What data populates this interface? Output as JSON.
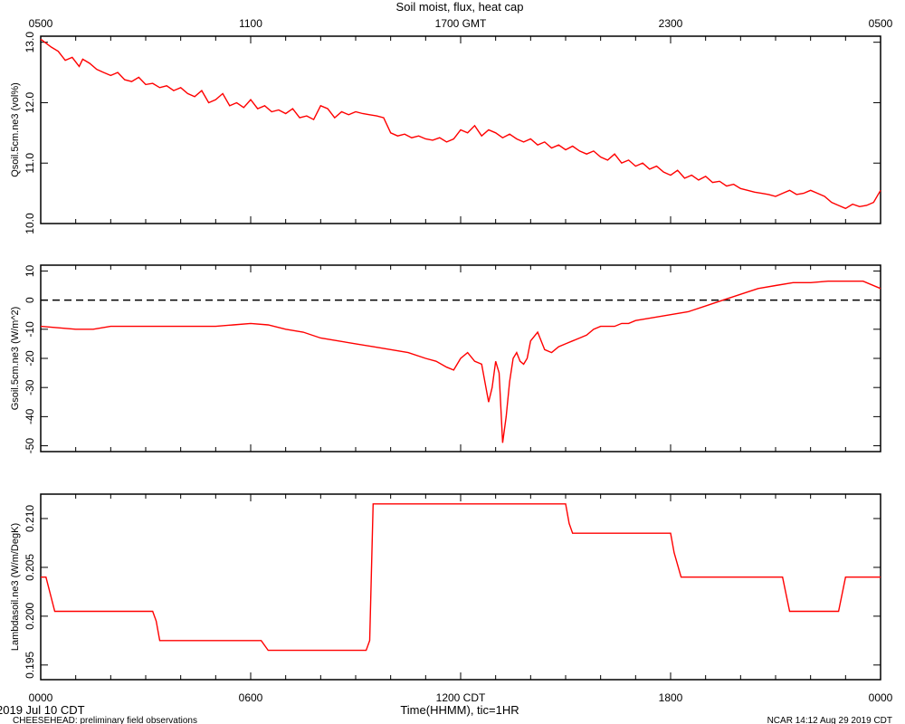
{
  "title": "Soil moist, flux, heat cap",
  "footer": {
    "left_date": "2019 Jul 10 CDT",
    "project": "CHEESEHEAD: preliminary field observations",
    "stamp": "NCAR 14:12 Aug 29 2019 CDT"
  },
  "top_axis": {
    "ticks": [
      {
        "hour": 0,
        "label": "0500"
      },
      {
        "hour": 6,
        "label": "1100"
      },
      {
        "hour": 12,
        "label": "1700 GMT"
      },
      {
        "hour": 18,
        "label": "2300"
      },
      {
        "hour": 24,
        "label": "0500"
      }
    ]
  },
  "bottom_axis": {
    "xlabel": "Time(HHMM), tic=1HR",
    "ticks": [
      {
        "hour": 0,
        "label": "0000"
      },
      {
        "hour": 6,
        "label": "0600"
      },
      {
        "hour": 12,
        "label": "1200 CDT"
      },
      {
        "hour": 18,
        "label": "1800"
      },
      {
        "hour": 24,
        "label": "0000"
      }
    ]
  },
  "colors": {
    "series": "#ff0000",
    "axes": "#000000",
    "zero_line": "#000000"
  },
  "chart_data": [
    {
      "type": "line",
      "ylabel": "Qsoil.5cm.ne3 (vol%)",
      "xlim": [
        0,
        24
      ],
      "ylim": [
        10.0,
        13.1
      ],
      "yticks": [
        {
          "v": 10.0,
          "label": "10.0"
        },
        {
          "v": 11.0,
          "label": "11.0"
        },
        {
          "v": 12.0,
          "label": "12.0"
        },
        {
          "v": 13.0,
          "label": "13.0"
        }
      ],
      "zero_line": false,
      "series": [
        {
          "x": [
            0,
            0.3,
            0.5,
            0.7,
            0.9,
            1.1,
            1.2,
            1.4,
            1.6,
            1.8,
            2.0,
            2.2,
            2.4,
            2.6,
            2.8,
            3.0,
            3.2,
            3.4,
            3.6,
            3.8,
            4.0,
            4.2,
            4.4,
            4.6,
            4.8,
            5.0,
            5.2,
            5.4,
            5.6,
            5.8,
            6.0,
            6.2,
            6.4,
            6.6,
            6.8,
            7.0,
            7.2,
            7.4,
            7.6,
            7.8,
            8.0,
            8.2,
            8.4,
            8.6,
            8.8,
            9.0,
            9.2,
            9.4,
            9.6,
            9.8,
            10.0,
            10.2,
            10.4,
            10.6,
            10.8,
            11.0,
            11.2,
            11.4,
            11.6,
            11.8,
            12.0,
            12.2,
            12.4,
            12.6,
            12.8,
            13.0,
            13.2,
            13.4,
            13.6,
            13.8,
            14.0,
            14.2,
            14.4,
            14.6,
            14.8,
            15.0,
            15.2,
            15.4,
            15.6,
            15.8,
            16.0,
            16.2,
            16.4,
            16.6,
            16.8,
            17.0,
            17.2,
            17.4,
            17.6,
            17.8,
            18.0,
            18.2,
            18.4,
            18.6,
            18.8,
            19.0,
            19.2,
            19.4,
            19.6,
            19.8,
            20.0,
            20.2,
            20.4,
            20.6,
            20.8,
            21.0,
            21.2,
            21.4,
            21.6,
            21.8,
            22.0,
            22.2,
            22.4,
            22.6,
            22.8,
            23.0,
            23.2,
            23.4,
            23.6,
            23.8,
            24.0
          ],
          "y": [
            13.05,
            12.92,
            12.85,
            12.7,
            12.75,
            12.6,
            12.72,
            12.65,
            12.55,
            12.5,
            12.45,
            12.5,
            12.38,
            12.35,
            12.42,
            12.3,
            12.32,
            12.25,
            12.28,
            12.2,
            12.25,
            12.15,
            12.1,
            12.2,
            12.0,
            12.05,
            12.15,
            11.95,
            12.0,
            11.92,
            12.05,
            11.9,
            11.95,
            11.85,
            11.88,
            11.82,
            11.9,
            11.75,
            11.78,
            11.72,
            11.95,
            11.9,
            11.75,
            11.85,
            11.8,
            11.85,
            11.82,
            11.8,
            11.78,
            11.75,
            11.5,
            11.45,
            11.48,
            11.42,
            11.45,
            11.4,
            11.38,
            11.42,
            11.35,
            11.4,
            11.55,
            11.5,
            11.62,
            11.45,
            11.55,
            11.5,
            11.42,
            11.48,
            11.4,
            11.35,
            11.4,
            11.3,
            11.35,
            11.25,
            11.3,
            11.22,
            11.28,
            11.2,
            11.15,
            11.2,
            11.1,
            11.05,
            11.15,
            11.0,
            11.05,
            10.95,
            11.0,
            10.9,
            10.95,
            10.85,
            10.8,
            10.88,
            10.75,
            10.8,
            10.72,
            10.78,
            10.68,
            10.7,
            10.62,
            10.65,
            10.58,
            10.55,
            10.52,
            10.5,
            10.48,
            10.45,
            10.5,
            10.55,
            10.48,
            10.5,
            10.55,
            10.5,
            10.45,
            10.35,
            10.3,
            10.25,
            10.32,
            10.28,
            10.3,
            10.35,
            10.55
          ]
        }
      ]
    },
    {
      "type": "line",
      "ylabel": "Gsoil.5cm.ne3 (W/m^2)",
      "xlim": [
        0,
        24
      ],
      "ylim": [
        -52,
        12
      ],
      "yticks": [
        {
          "v": -50,
          "label": "-50"
        },
        {
          "v": -40,
          "label": "-40"
        },
        {
          "v": -30,
          "label": "-30"
        },
        {
          "v": -20,
          "label": "-20"
        },
        {
          "v": -10,
          "label": "-10"
        },
        {
          "v": 0,
          "label": "0"
        },
        {
          "v": 10,
          "label": "10"
        }
      ],
      "zero_line": true,
      "series": [
        {
          "x": [
            0,
            1,
            1.5,
            2,
            3,
            4,
            5,
            5.5,
            6,
            6.5,
            7,
            7.5,
            8,
            8.5,
            9,
            9.5,
            10,
            10.5,
            11,
            11.3,
            11.6,
            11.8,
            12.0,
            12.2,
            12.4,
            12.6,
            12.8,
            12.9,
            13.0,
            13.1,
            13.2,
            13.3,
            13.4,
            13.5,
            13.6,
            13.7,
            13.8,
            13.9,
            14.0,
            14.2,
            14.4,
            14.6,
            14.8,
            15.0,
            15.2,
            15.4,
            15.6,
            15.8,
            16.0,
            16.2,
            16.4,
            16.6,
            16.8,
            17.0,
            17.5,
            18.0,
            18.5,
            19.0,
            19.5,
            20.0,
            20.5,
            21.0,
            21.5,
            22.0,
            22.5,
            23.0,
            23.5,
            24.0
          ],
          "y": [
            -9,
            -10,
            -10,
            -9,
            -9,
            -9,
            -9,
            -8.5,
            -8,
            -8.5,
            -10,
            -11,
            -13,
            -14,
            -15,
            -16,
            -17,
            -18,
            -20,
            -21,
            -23,
            -24,
            -20,
            -18,
            -21,
            -22,
            -35,
            -30,
            -21,
            -25,
            -49,
            -40,
            -28,
            -20,
            -18,
            -21,
            -22,
            -20,
            -14,
            -11,
            -17,
            -18,
            -16,
            -15,
            -14,
            -13,
            -12,
            -10,
            -9,
            -9,
            -9,
            -8,
            -8,
            -7,
            -6,
            -5,
            -4,
            -2,
            0,
            2,
            4,
            5,
            6,
            6,
            6.5,
            6.5,
            6.5,
            4
          ]
        }
      ]
    },
    {
      "type": "line",
      "ylabel": "Lambdasoil.ne3 (W/m/DegK)",
      "xlim": [
        0,
        24
      ],
      "ylim": [
        0.1935,
        0.2125
      ],
      "yticks": [
        {
          "v": 0.195,
          "label": "0.195"
        },
        {
          "v": 0.2,
          "label": "0.200"
        },
        {
          "v": 0.205,
          "label": "0.205"
        },
        {
          "v": 0.21,
          "label": "0.210"
        }
      ],
      "zero_line": false,
      "series": [
        {
          "x": [
            0,
            0.15,
            0.4,
            3.2,
            3.3,
            3.4,
            6.3,
            6.5,
            9.3,
            9.4,
            9.5,
            15.0,
            15.1,
            15.2,
            18.0,
            18.1,
            18.3,
            21.2,
            21.4,
            22.8,
            23.0,
            24.0
          ],
          "y": [
            0.204,
            0.204,
            0.2005,
            0.2005,
            0.1995,
            0.1975,
            0.1975,
            0.1965,
            0.1965,
            0.1975,
            0.2115,
            0.2115,
            0.2095,
            0.2085,
            0.2085,
            0.2065,
            0.204,
            0.204,
            0.2005,
            0.2005,
            0.204,
            0.204
          ]
        }
      ]
    }
  ]
}
